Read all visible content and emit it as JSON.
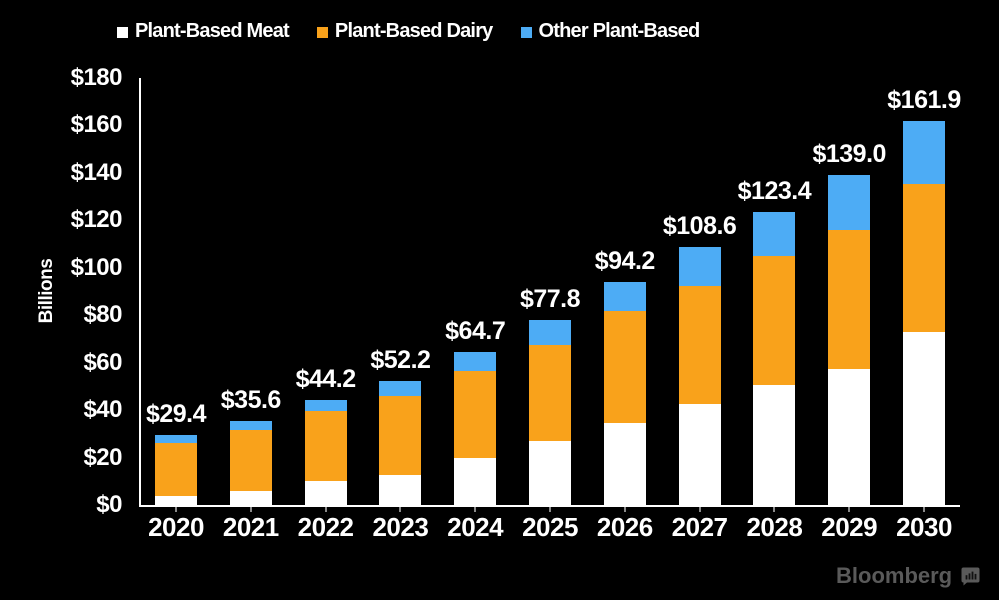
{
  "chart_data": {
    "type": "bar",
    "stacked": true,
    "categories": [
      "2020",
      "2021",
      "2022",
      "2023",
      "2024",
      "2025",
      "2026",
      "2027",
      "2028",
      "2029",
      "2030"
    ],
    "series": [
      {
        "name": "Plant-Based Meat",
        "color": "#FFFFFF",
        "values": [
          4.0,
          6.0,
          10.1,
          12.6,
          19.8,
          26.9,
          34.7,
          42.5,
          50.4,
          57.3,
          72.8
        ]
      },
      {
        "name": "Plant-Based Dairy",
        "color": "#F9A21B",
        "values": [
          22.2,
          25.8,
          29.6,
          33.4,
          36.7,
          40.5,
          46.9,
          49.8,
          54.7,
          58.8,
          62.6
        ]
      },
      {
        "name": "Other Plant-Based",
        "color": "#4DACF5",
        "values": [
          3.2,
          3.8,
          4.5,
          6.2,
          8.2,
          10.4,
          12.6,
          16.3,
          18.3,
          22.9,
          26.5
        ]
      }
    ],
    "totals": [
      29.4,
      35.6,
      44.2,
      52.2,
      64.7,
      77.8,
      94.2,
      108.6,
      123.4,
      139.0,
      161.9
    ],
    "total_labels": [
      "$29.4",
      "$35.6",
      "$44.2",
      "$52.2",
      "$64.7",
      "$77.8",
      "$94.2",
      "$108.6",
      "$123.4",
      "$139.0",
      "$161.9"
    ],
    "ylabel": "Billions",
    "ylim": [
      0,
      180
    ],
    "ytick_labels": [
      "$0",
      "$20",
      "$40",
      "$60",
      "$80",
      "$100",
      "$120",
      "$140",
      "$160",
      "$180"
    ],
    "legend_position": "top",
    "grid": false
  },
  "branding": {
    "logo_text": "Bloomberg",
    "logo_icon": "bar-chart-bubble-icon"
  },
  "colors": {
    "background": "#000000",
    "text": "#FFFFFF",
    "axis": "#FFFFFF",
    "tick_mark": "#8a8a8a",
    "logo": "#5A5A5A"
  }
}
